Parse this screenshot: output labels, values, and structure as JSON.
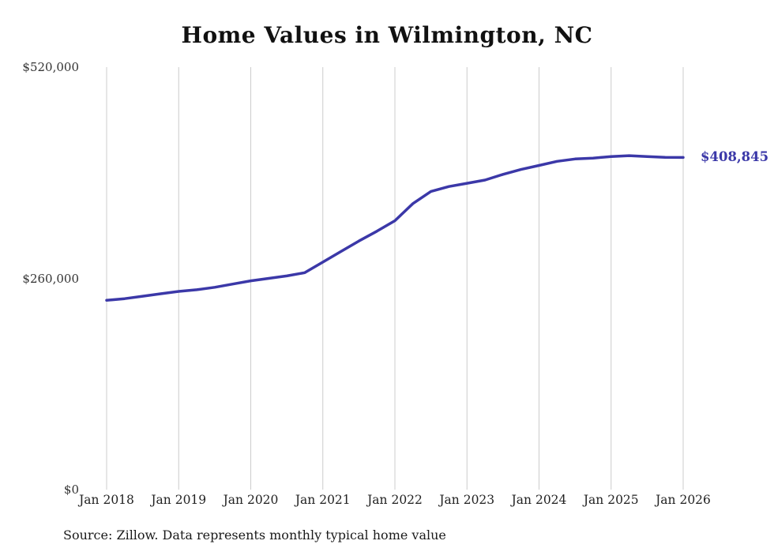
{
  "title": "Home Values in Wilmington, NC",
  "source_note": "Source: Zillow. Data represents monthly typical home value",
  "chart_data": {
    "type": "line",
    "title": "Home Values in Wilmington, NC",
    "xlabel": "",
    "ylabel": "",
    "ylim": [
      0,
      520000
    ],
    "y_ticks": [
      {
        "value": 0,
        "label": "$0"
      },
      {
        "value": 260000,
        "label": "$260,000"
      },
      {
        "value": 520000,
        "label": "$520,000"
      }
    ],
    "x_tick_labels": [
      "Jan 2018",
      "Jan 2019",
      "Jan 2020",
      "Jan 2021",
      "Jan 2022",
      "Jan 2023",
      "Jan 2024",
      "Jan 2025",
      "Jan 2026"
    ],
    "grid": "vertical-only",
    "legend": "none",
    "line_color": "#3b38a8",
    "grid_color": "#cccccc",
    "end_label": "$408,845",
    "latest_value": 408845,
    "series": [
      {
        "name": "Typical home value",
        "months_since_jan_2018": [
          0,
          3,
          6,
          9,
          12,
          15,
          18,
          21,
          24,
          27,
          30,
          33,
          36,
          39,
          42,
          45,
          48,
          51,
          54,
          57,
          60,
          63,
          66,
          69,
          72,
          75,
          78,
          81,
          84,
          87,
          90,
          93,
          96
        ],
        "values": [
          233000,
          235000,
          238000,
          241000,
          244000,
          246000,
          249000,
          253000,
          257000,
          260000,
          263000,
          267000,
          280000,
          293000,
          306000,
          318000,
          331000,
          352000,
          367000,
          373000,
          377000,
          381000,
          388000,
          394000,
          399000,
          404000,
          407000,
          408000,
          410000,
          411000,
          410000,
          409000,
          408845
        ]
      }
    ]
  }
}
